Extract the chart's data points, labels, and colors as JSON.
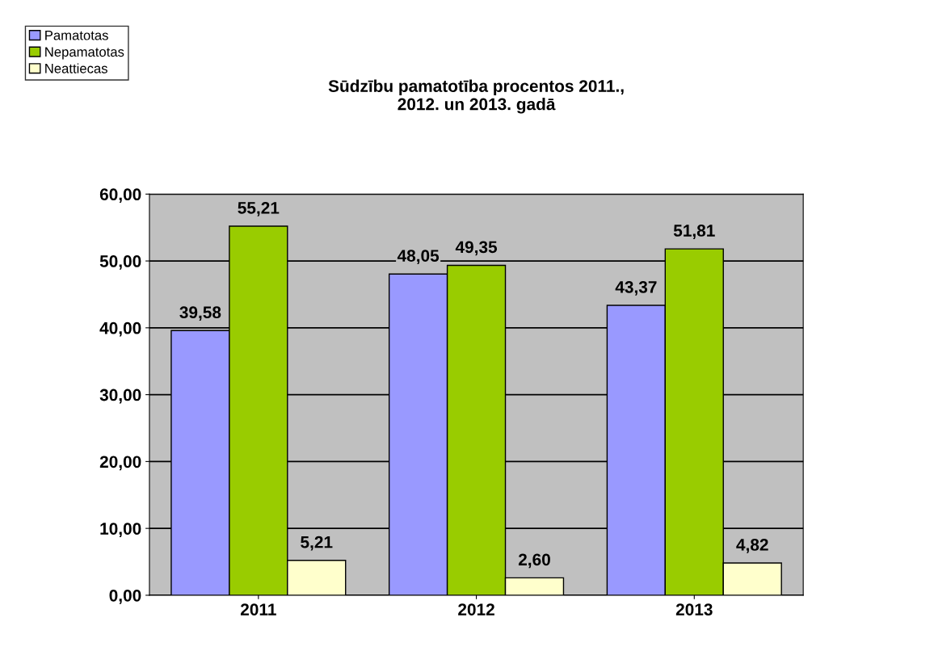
{
  "chart_data": {
    "type": "bar",
    "title": "Sūdzību pamatotība procentos 2011.,\n2012. un 2013. gadā",
    "categories": [
      "2011",
      "2012",
      "2013"
    ],
    "series": [
      {
        "name": "Pamatotas",
        "color": "#9999ff",
        "values": [
          39.58,
          48.05,
          43.37
        ],
        "value_labels": [
          "39,58",
          "48,05",
          "43,37"
        ]
      },
      {
        "name": "Nepamatotas",
        "color": "#99cc00",
        "values": [
          55.21,
          49.35,
          51.81
        ],
        "value_labels": [
          "55,21",
          "49,35",
          "51,81"
        ]
      },
      {
        "name": "Neattiecas",
        "color": "#ffffcc",
        "values": [
          5.21,
          2.6,
          4.82
        ],
        "value_labels": [
          "5,21",
          "2,60",
          "4,82"
        ]
      }
    ],
    "ylim": [
      0,
      60
    ],
    "yticks": [
      {
        "value": 0,
        "label": "0,00"
      },
      {
        "value": 10,
        "label": "10,00"
      },
      {
        "value": 20,
        "label": "20,00"
      },
      {
        "value": 30,
        "label": "30,00"
      },
      {
        "value": 40,
        "label": "40,00"
      },
      {
        "value": 50,
        "label": "50,00"
      },
      {
        "value": 60,
        "label": "60,00"
      }
    ],
    "grid": "y",
    "legend": "top left"
  }
}
